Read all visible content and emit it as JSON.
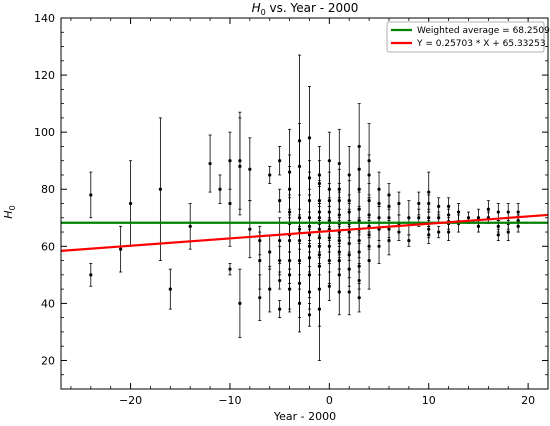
{
  "chart_data": {
    "type": "scatter",
    "title_main": "H",
    "title_sub": "0",
    "title_rest": " vs. Year - 2000",
    "xlabel": "Year - 2000",
    "ylabel_main": "H",
    "ylabel_sub": "0",
    "xlim": [
      -27,
      22
    ],
    "ylim": [
      10,
      140
    ],
    "xticks": [
      -20,
      -10,
      0,
      10,
      20
    ],
    "xtick_labels": [
      "−20",
      "−10",
      "0",
      "10",
      "20"
    ],
    "yticks": [
      20,
      40,
      60,
      80,
      100,
      120,
      140
    ],
    "ytick_labels": [
      "20",
      "40",
      "60",
      "80",
      "100",
      "120",
      "140"
    ],
    "legend_position": "top-right",
    "lines": [
      {
        "name": "Weighted average = 68.2509",
        "color": "#008000",
        "slope": 0,
        "intercept": 68.2509
      },
      {
        "name": "Y = 0.25703 * X + 65.33253",
        "color": "#ff0000",
        "slope": 0.25703,
        "intercept": 65.33253
      }
    ],
    "points": [
      [
        -24,
        78,
        8
      ],
      [
        -24,
        50,
        4
      ],
      [
        -21,
        59,
        8
      ],
      [
        -20,
        75,
        15
      ],
      [
        -17,
        80,
        25
      ],
      [
        -16,
        45,
        7
      ],
      [
        -14,
        67,
        8
      ],
      [
        -12,
        89,
        10
      ],
      [
        -11,
        80,
        5
      ],
      [
        -10,
        90,
        10
      ],
      [
        -10,
        75,
        15
      ],
      [
        -10,
        52,
        2
      ],
      [
        -9,
        90,
        17
      ],
      [
        -9,
        88,
        17
      ],
      [
        -9,
        40,
        12
      ],
      [
        -8,
        87,
        11
      ],
      [
        -8,
        66,
        10
      ],
      [
        -7,
        62,
        5
      ],
      [
        -7,
        55,
        10
      ],
      [
        -7,
        42,
        8
      ],
      [
        -6,
        85,
        3
      ],
      [
        -6,
        58,
        6
      ],
      [
        -6,
        45,
        8
      ],
      [
        -5,
        90,
        5
      ],
      [
        -5,
        76,
        4
      ],
      [
        -5,
        62,
        8
      ],
      [
        -5,
        55,
        5
      ],
      [
        -5,
        48,
        3
      ],
      [
        -5,
        38,
        3
      ],
      [
        -4,
        86,
        15
      ],
      [
        -4,
        80,
        8
      ],
      [
        -4,
        72,
        20
      ],
      [
        -4,
        68,
        10
      ],
      [
        -4,
        64,
        6
      ],
      [
        -4,
        62,
        15
      ],
      [
        -4,
        55,
        18
      ],
      [
        -4,
        50,
        5
      ],
      [
        -4,
        45,
        7
      ],
      [
        -3,
        97,
        30
      ],
      [
        -3,
        88,
        15
      ],
      [
        -3,
        70,
        8
      ],
      [
        -3,
        66,
        5
      ],
      [
        -3,
        62,
        8
      ],
      [
        -3,
        55,
        10
      ],
      [
        -3,
        47,
        12
      ],
      [
        -3,
        40,
        10
      ],
      [
        -2,
        98,
        18
      ],
      [
        -2,
        84,
        6
      ],
      [
        -2,
        76,
        10
      ],
      [
        -2,
        70,
        8
      ],
      [
        -2,
        67,
        5
      ],
      [
        -2,
        64,
        6
      ],
      [
        -2,
        60,
        7
      ],
      [
        -2,
        56,
        5
      ],
      [
        -2,
        50,
        8
      ],
      [
        -2,
        44,
        6
      ],
      [
        -2,
        36,
        4
      ],
      [
        -1,
        85,
        10
      ],
      [
        -1,
        82,
        8
      ],
      [
        -1,
        76,
        7
      ],
      [
        -1,
        72,
        9
      ],
      [
        -1,
        70,
        5
      ],
      [
        -1,
        68,
        4
      ],
      [
        -1,
        66,
        3
      ],
      [
        -1,
        63,
        5
      ],
      [
        -1,
        60,
        6
      ],
      [
        -1,
        57,
        7
      ],
      [
        -1,
        53,
        8
      ],
      [
        -1,
        45,
        13
      ],
      [
        -1,
        38,
        18
      ],
      [
        0,
        90,
        10
      ],
      [
        0,
        80,
        6
      ],
      [
        0,
        76,
        6
      ],
      [
        0,
        72,
        5
      ],
      [
        0,
        69,
        5
      ],
      [
        0,
        66,
        4
      ],
      [
        0,
        63,
        5
      ],
      [
        0,
        60,
        6
      ],
      [
        0,
        55,
        8
      ],
      [
        0,
        46,
        5
      ],
      [
        1,
        89,
        12
      ],
      [
        1,
        80,
        7
      ],
      [
        1,
        76,
        6
      ],
      [
        1,
        71,
        8
      ],
      [
        1,
        68,
        5
      ],
      [
        1,
        65,
        4
      ],
      [
        1,
        62,
        5
      ],
      [
        1,
        58,
        6
      ],
      [
        1,
        55,
        5
      ],
      [
        1,
        50,
        6
      ],
      [
        1,
        44,
        8
      ],
      [
        2,
        85,
        10
      ],
      [
        2,
        76,
        7
      ],
      [
        2,
        72,
        6
      ],
      [
        2,
        68,
        5
      ],
      [
        2,
        65,
        4
      ],
      [
        2,
        61,
        6
      ],
      [
        2,
        57,
        8
      ],
      [
        2,
        52,
        6
      ],
      [
        2,
        44,
        8
      ],
      [
        3,
        95,
        15
      ],
      [
        3,
        87,
        8
      ],
      [
        3,
        80,
        7
      ],
      [
        3,
        73,
        7
      ],
      [
        3,
        69,
        5
      ],
      [
        3,
        66,
        4
      ],
      [
        3,
        62,
        6
      ],
      [
        3,
        58,
        7
      ],
      [
        3,
        53,
        8
      ],
      [
        3,
        48,
        6
      ],
      [
        3,
        42,
        5
      ],
      [
        4,
        90,
        13
      ],
      [
        4,
        85,
        7
      ],
      [
        4,
        76,
        6
      ],
      [
        4,
        71,
        6
      ],
      [
        4,
        67,
        4
      ],
      [
        4,
        64,
        5
      ],
      [
        4,
        60,
        5
      ],
      [
        4,
        55,
        10
      ],
      [
        5,
        80,
        6
      ],
      [
        5,
        75,
        5
      ],
      [
        5,
        70,
        4
      ],
      [
        5,
        66,
        4
      ],
      [
        5,
        60,
        6
      ],
      [
        6,
        78,
        4
      ],
      [
        6,
        74,
        4
      ],
      [
        6,
        70,
        3
      ],
      [
        6,
        66,
        3
      ],
      [
        6,
        62,
        5
      ],
      [
        7,
        75,
        4
      ],
      [
        7,
        68,
        3
      ],
      [
        7,
        65,
        3
      ],
      [
        8,
        70,
        6
      ],
      [
        8,
        62,
        2
      ],
      [
        9,
        75,
        4
      ],
      [
        9,
        70,
        3
      ],
      [
        10,
        79,
        7
      ],
      [
        10,
        75,
        3
      ],
      [
        10,
        70,
        3
      ],
      [
        10,
        66,
        3
      ],
      [
        10,
        64,
        3
      ],
      [
        11,
        74,
        3
      ],
      [
        11,
        70,
        2
      ],
      [
        11,
        65,
        2
      ],
      [
        12,
        74,
        3
      ],
      [
        12,
        71,
        2
      ],
      [
        12,
        68,
        2
      ],
      [
        12,
        65,
        3
      ],
      [
        13,
        72,
        3
      ],
      [
        13,
        68,
        3
      ],
      [
        14,
        70,
        2
      ],
      [
        15,
        70,
        3
      ],
      [
        15,
        67,
        2
      ],
      [
        16,
        73,
        3
      ],
      [
        16,
        70,
        2
      ],
      [
        17,
        72,
        3
      ],
      [
        17,
        67,
        2
      ],
      [
        17,
        64,
        2
      ],
      [
        18,
        72,
        3
      ],
      [
        18,
        68,
        2
      ],
      [
        18,
        65,
        3
      ],
      [
        19,
        72,
        3
      ],
      [
        19,
        69,
        2
      ],
      [
        19,
        67,
        2
      ]
    ]
  }
}
